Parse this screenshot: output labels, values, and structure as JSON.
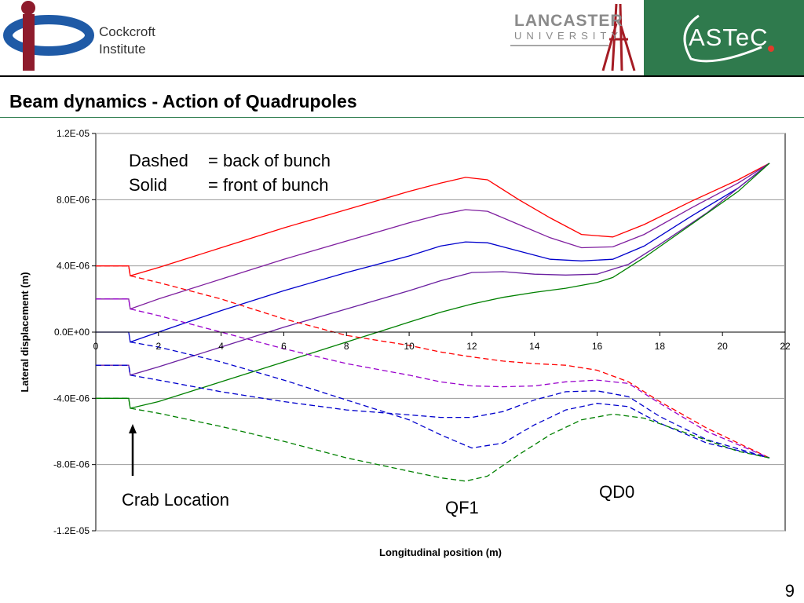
{
  "header": {
    "cockcroft_line1": "Cockcroft",
    "cockcroft_line2": "Institute",
    "lancaster_name": "LANCASTER",
    "lancaster_sub": "UNIVERSITY",
    "astec_name": "ASTeC",
    "brand_green": "#2f7a4d",
    "cockcroft_red": "#8e1b2c",
    "cockcroft_blue": "#1f5aa6"
  },
  "slide": {
    "title": "Beam dynamics - Action of Quadrupoles",
    "page_number": "9"
  },
  "chart_data": {
    "type": "line",
    "title": "",
    "xlabel": "Longitudinal position (m)",
    "ylabel": "Lateral displacement (m)",
    "xlim": [
      0,
      22
    ],
    "ylim": [
      -1.2e-05,
      1.2e-05
    ],
    "x_ticks": [
      "0",
      "2",
      "4",
      "6",
      "8",
      "10",
      "12",
      "14",
      "16",
      "18",
      "20",
      "22"
    ],
    "y_ticks": [
      "1.2E-05",
      "8.0E-06",
      "4.0E-06",
      "0.0E+00",
      "-4.0E-06",
      "-8.0E-06",
      "-1.2E-05"
    ],
    "grid": "horizontal",
    "annotations": {
      "legend_line1_a": "Dashed",
      "legend_line1_b": "= back of bunch",
      "legend_line2_a": "Solid",
      "legend_line2_b": "= front of bunch",
      "crab": "Crab Location",
      "qf1": "QF1",
      "qd0": "QD0"
    },
    "series": [
      {
        "color": "#ff0000",
        "style": "solid",
        "x": [
          0,
          1.05,
          1.1,
          2,
          4,
          6,
          8,
          10,
          11,
          11.8,
          12.5,
          13.5,
          14.5,
          15.5,
          16.5,
          17.5,
          19,
          20.5,
          21.5
        ],
        "y": [
          4e-06,
          4e-06,
          3.4e-06,
          3.9e-06,
          5.1e-06,
          6.3e-06,
          7.4e-06,
          8.5e-06,
          9e-06,
          9.35e-06,
          9.2e-06,
          8e-06,
          6.9e-06,
          5.9e-06,
          5.75e-06,
          6.5e-06,
          7.9e-06,
          9.2e-06,
          1.02e-05
        ]
      },
      {
        "color": "#7f1f9f",
        "style": "solid",
        "x": [
          0,
          1.05,
          1.1,
          2,
          4,
          6,
          8,
          10,
          11,
          11.8,
          12.5,
          13.5,
          14.5,
          15.5,
          16.5,
          17.5,
          19,
          20.5,
          21.5
        ],
        "y": [
          2e-06,
          2e-06,
          1.4e-06,
          2e-06,
          3.2e-06,
          4.4e-06,
          5.5e-06,
          6.6e-06,
          7.1e-06,
          7.4e-06,
          7.3e-06,
          6.5e-06,
          5.7e-06,
          5.1e-06,
          5.15e-06,
          5.9e-06,
          7.5e-06,
          9e-06,
          1.02e-05
        ]
      },
      {
        "color": "#0000cc",
        "style": "solid",
        "x": [
          0,
          1.05,
          1.1,
          2,
          4,
          6,
          8,
          10,
          11,
          11.8,
          12.5,
          13.5,
          14.5,
          15.5,
          16.5,
          17.5,
          19,
          20.5,
          21.5
        ],
        "y": [
          0,
          0,
          -6e-07,
          0,
          1.3e-06,
          2.5e-06,
          3.6e-06,
          4.6e-06,
          5.2e-06,
          5.45e-06,
          5.4e-06,
          4.9e-06,
          4.4e-06,
          4.3e-06,
          4.4e-06,
          5.2e-06,
          7e-06,
          8.7e-06,
          1.02e-05
        ]
      },
      {
        "color": "#6a1fa0",
        "style": "solid",
        "x": [
          0,
          1.05,
          1.1,
          2,
          4,
          6,
          8,
          10,
          11,
          12,
          13,
          14,
          15,
          16,
          17,
          18,
          19.5,
          21.5
        ],
        "y": [
          -2e-06,
          -2e-06,
          -2.6e-06,
          -2.1e-06,
          -9e-07,
          3e-07,
          1.4e-06,
          2.5e-06,
          3.1e-06,
          3.6e-06,
          3.65e-06,
          3.5e-06,
          3.45e-06,
          3.5e-06,
          4.1e-06,
          5.3e-06,
          7.2e-06,
          1.02e-05
        ]
      },
      {
        "color": "#008000",
        "style": "solid",
        "x": [
          0,
          1.05,
          1.1,
          2,
          4,
          6,
          8,
          10,
          11,
          12,
          13,
          14,
          15,
          16,
          16.5,
          17.5,
          19,
          20.5,
          21.5
        ],
        "y": [
          -4e-06,
          -4e-06,
          -4.6e-06,
          -4.2e-06,
          -3e-06,
          -1.8e-06,
          -6e-07,
          6e-07,
          1.2e-06,
          1.7e-06,
          2.1e-06,
          2.4e-06,
          2.65e-06,
          3e-06,
          3.3e-06,
          4.5e-06,
          6.5e-06,
          8.5e-06,
          1.02e-05
        ]
      },
      {
        "color": "#ff0000",
        "style": "dashed",
        "x": [
          0,
          1.05,
          1.1,
          2,
          4,
          6,
          8,
          10,
          11,
          12,
          13,
          14,
          15,
          16,
          17,
          18,
          19.5,
          21.5
        ],
        "y": [
          4e-06,
          4e-06,
          3.4e-06,
          3e-06,
          2e-06,
          8e-07,
          -2e-07,
          -8e-07,
          -1.2e-06,
          -1.5e-06,
          -1.75e-06,
          -1.9e-06,
          -2e-06,
          -2.3e-06,
          -3e-06,
          -4.2e-06,
          -5.8e-06,
          -7.6e-06
        ]
      },
      {
        "color": "#9900cc",
        "style": "dashed",
        "x": [
          0,
          1.05,
          1.1,
          2,
          4,
          6,
          8,
          10,
          11,
          12,
          13,
          14,
          15,
          16,
          17,
          18,
          19.5,
          21.5
        ],
        "y": [
          2e-06,
          2e-06,
          1.4e-06,
          1e-06,
          0,
          -1e-06,
          -1.9e-06,
          -2.6e-06,
          -3e-06,
          -3.25e-06,
          -3.3e-06,
          -3.25e-06,
          -3e-06,
          -2.9e-06,
          -3.1e-06,
          -4.3e-06,
          -6e-06,
          -7.6e-06
        ]
      },
      {
        "color": "#0000cc",
        "style": "dashed",
        "x": [
          0,
          1.05,
          1.1,
          2,
          4,
          6,
          8,
          10,
          11,
          12,
          13,
          14,
          15,
          16,
          17,
          18,
          19.5,
          21.5
        ],
        "y": [
          -2e-06,
          -2e-06,
          -2.6e-06,
          -2.9e-06,
          -3.6e-06,
          -4.2e-06,
          -4.7e-06,
          -5e-06,
          -5.15e-06,
          -5.15e-06,
          -4.8e-06,
          -4.1e-06,
          -3.6e-06,
          -3.55e-06,
          -3.9e-06,
          -5.1e-06,
          -6.5e-06,
          -7.6e-06
        ]
      },
      {
        "color": "#0000cc",
        "style": "dashed",
        "x": [
          1.1,
          2,
          4,
          6,
          8,
          10,
          11,
          12,
          13,
          14,
          15,
          16,
          17,
          18,
          19.5,
          21.5
        ],
        "y": [
          -6e-07,
          -9e-07,
          -1.8e-06,
          -2.9e-06,
          -4.1e-06,
          -5.3e-06,
          -6.2e-06,
          -7e-06,
          -6.7e-06,
          -5.6e-06,
          -4.7e-06,
          -4.3e-06,
          -4.5e-06,
          -5.5e-06,
          -6.7e-06,
          -7.6e-06
        ]
      },
      {
        "color": "#008000",
        "style": "dashed",
        "x": [
          0,
          1.05,
          1.1,
          2,
          4,
          6,
          8,
          10,
          11,
          11.8,
          12.5,
          13.5,
          14.5,
          15.5,
          16.5,
          17.5,
          19,
          20.5,
          21.5
        ],
        "y": [
          -4e-06,
          -4e-06,
          -4.6e-06,
          -4.9e-06,
          -5.7e-06,
          -6.6e-06,
          -7.6e-06,
          -8.4e-06,
          -8.8e-06,
          -9e-06,
          -8.7e-06,
          -7.4e-06,
          -6.2e-06,
          -5.3e-06,
          -4.95e-06,
          -5.2e-06,
          -6.2e-06,
          -7.2e-06,
          -7.6e-06
        ]
      }
    ]
  }
}
